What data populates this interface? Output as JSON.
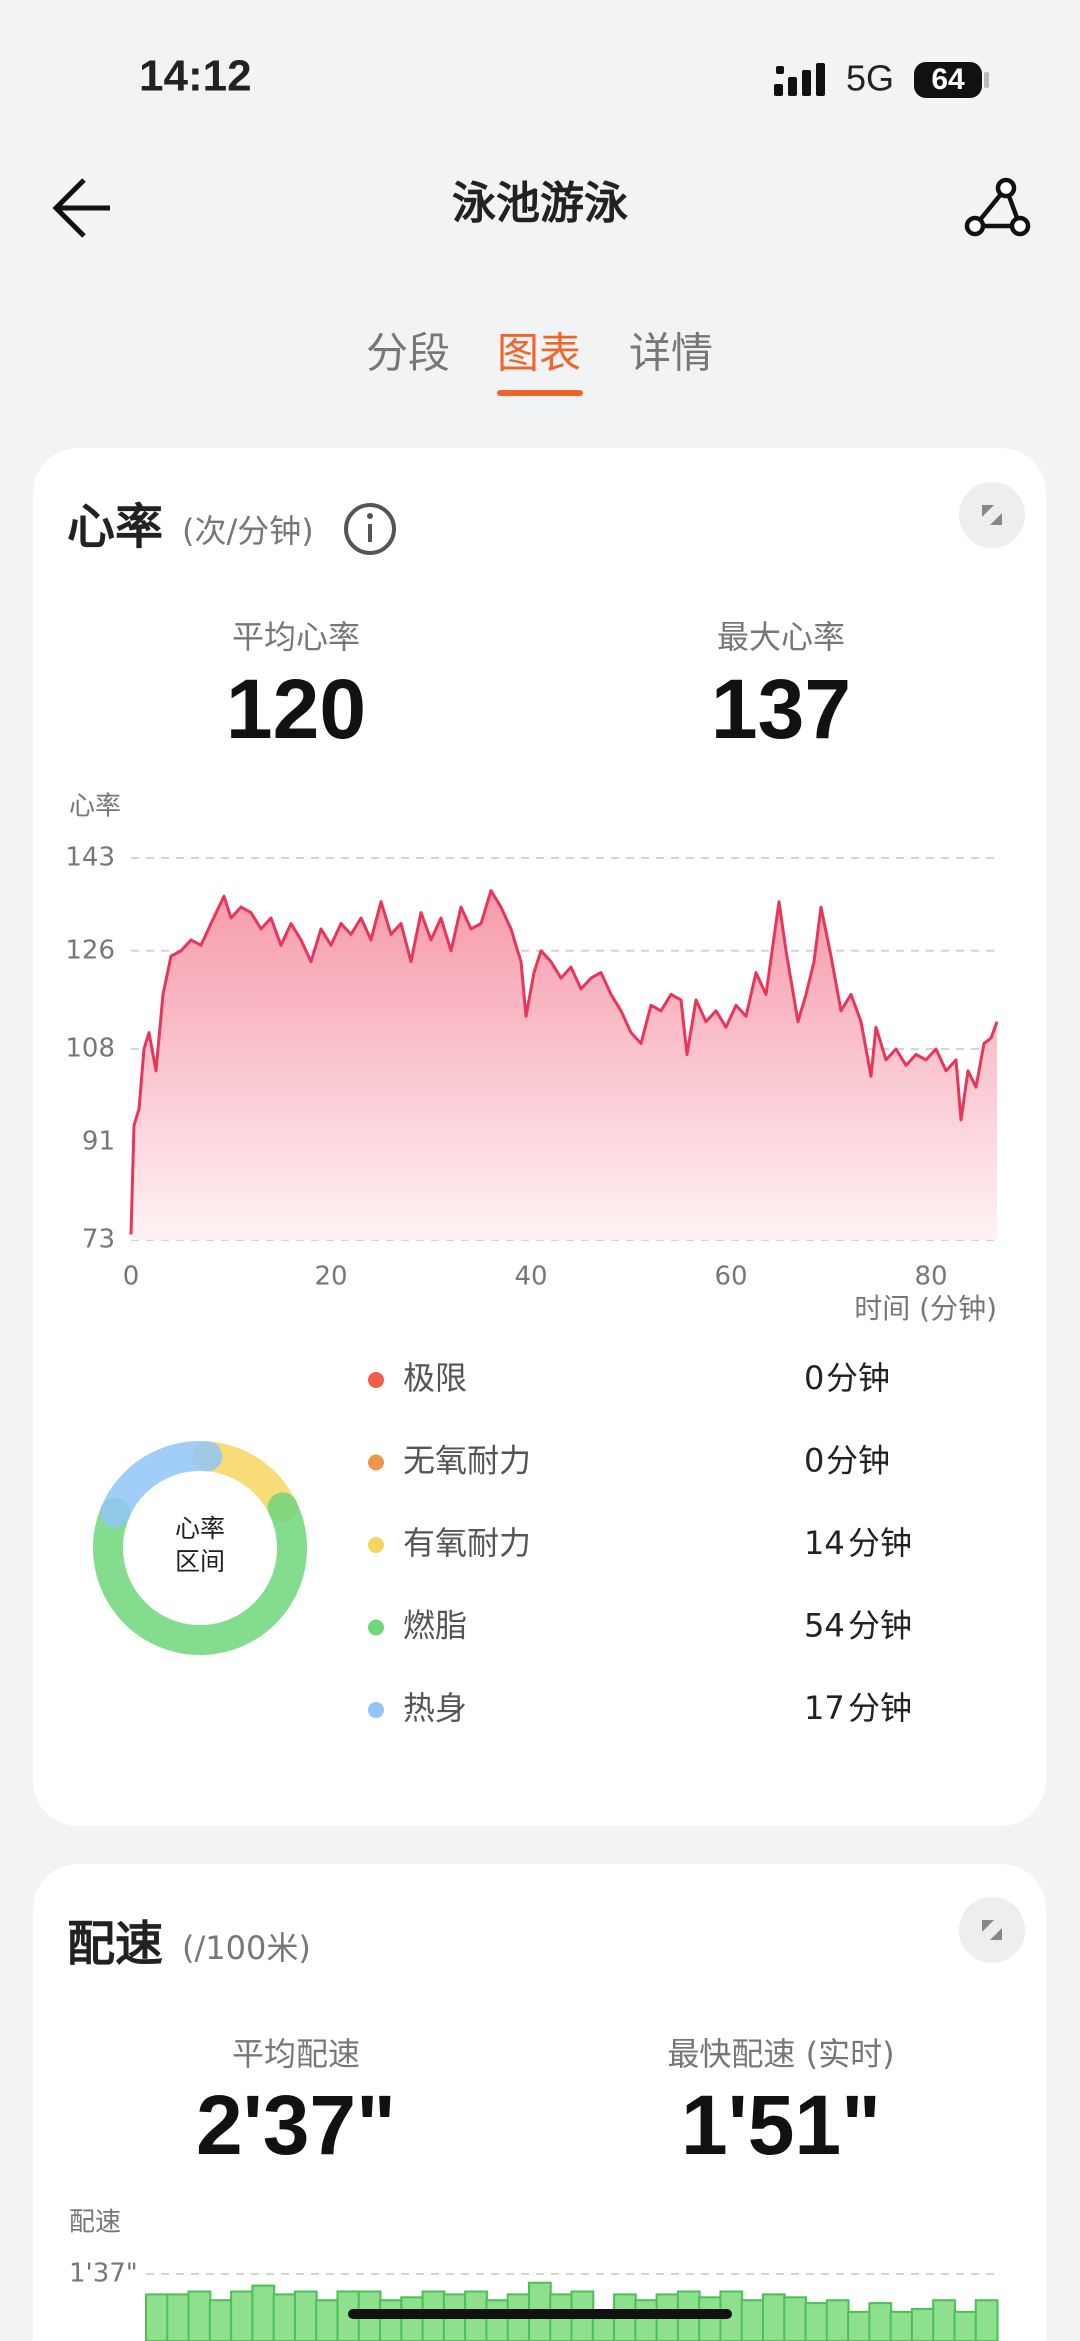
{
  "status_bar": {
    "time": "14:12",
    "network": "5G",
    "battery": "64"
  },
  "header": {
    "title": "泳池游泳"
  },
  "tabs": [
    "分段",
    "图表",
    "详情"
  ],
  "heart_rate": {
    "title": "心率",
    "unit": "(次/分钟)",
    "summary": [
      {
        "label": "平均心率",
        "value": "120"
      },
      {
        "label": "最大心率",
        "value": "137"
      }
    ],
    "chart": {
      "type": "line",
      "y_label": "心率",
      "x_label": "时间 (分钟)",
      "color": "#e8365a",
      "x": [
        0,
        0.3,
        0.8,
        1.3,
        1.8,
        2.5,
        3.2,
        4,
        5,
        6,
        7,
        8,
        9.3,
        10,
        11,
        12,
        13,
        14,
        15,
        16,
        17,
        18,
        19,
        20,
        21,
        22,
        23,
        24,
        25,
        26,
        27,
        28,
        29,
        30,
        31,
        32,
        33,
        34,
        35,
        36,
        37,
        38,
        39,
        39.5,
        40.3,
        41,
        42,
        43,
        44,
        45,
        46,
        47,
        48,
        49,
        50,
        51,
        52,
        53,
        54,
        55,
        55.6,
        56.5,
        57.5,
        58.5,
        59.5,
        60.5,
        61.5,
        62.5,
        63.5,
        64.8,
        65.5,
        66.7,
        67.5,
        68.3,
        69,
        70,
        71,
        72,
        73,
        74,
        74.5,
        75.5,
        76.5,
        77.5,
        78.5,
        79.5,
        80.5,
        81.5,
        82.5,
        83,
        83.7,
        84.5,
        85.3,
        86,
        86.6
      ],
      "values": [
        74,
        94,
        97,
        108,
        111,
        104,
        118,
        125,
        126,
        128,
        127,
        131,
        136,
        132,
        134,
        133,
        130,
        132,
        127,
        131,
        128,
        124,
        130,
        127,
        131,
        129,
        132,
        128,
        135,
        129,
        131,
        124,
        133,
        128,
        132,
        126,
        134,
        130,
        131,
        137,
        134,
        130,
        124,
        114,
        122,
        126,
        124,
        121,
        123,
        119,
        121,
        122,
        118,
        115,
        111,
        109,
        116,
        115,
        118,
        117,
        107,
        117,
        113,
        115,
        112,
        116,
        114,
        122,
        118,
        135,
        126,
        113,
        118,
        124,
        134,
        125,
        115,
        118,
        113,
        103,
        112,
        106,
        108,
        105,
        107,
        106,
        108,
        104,
        106,
        95,
        104,
        101,
        109,
        110,
        113
      ],
      "xlim": [
        0,
        86.6
      ],
      "ylim": [
        73,
        143
      ],
      "xticks": [
        0,
        20,
        40,
        60,
        80
      ],
      "yticks": [
        73,
        91,
        108,
        126,
        143
      ]
    },
    "zone_center": [
      "心率",
      "区间"
    ],
    "minute_unit": "分钟",
    "zones": [
      {
        "name": "极限",
        "color": "#f25c4a",
        "minutes": 0
      },
      {
        "name": "无氧耐力",
        "color": "#f0964a",
        "minutes": 0
      },
      {
        "name": "有氧耐力",
        "color": "#f7d660",
        "minutes": 14
      },
      {
        "name": "燃脂",
        "color": "#6fd67a",
        "minutes": 54
      },
      {
        "name": "热身",
        "color": "#8fc5f7",
        "minutes": 17
      }
    ]
  },
  "pace": {
    "title": "配速",
    "unit": "(/100米)",
    "summary": [
      {
        "label": "平均配速",
        "value": "2'37\""
      },
      {
        "label": "最快配速 (实时)",
        "value": "1'51\""
      }
    ],
    "chart": {
      "type": "bar",
      "y_label": "配速",
      "color": "#8ee08e",
      "ylim": [
        97,
        120
      ],
      "yticks": [
        {
          "value": 97,
          "label": "1'37\""
        }
      ],
      "values": [
        104,
        104,
        103,
        106,
        103,
        101,
        104,
        103,
        106,
        103,
        103,
        106,
        105,
        103,
        104,
        103,
        106,
        104,
        100,
        104,
        103,
        110,
        104,
        106,
        104,
        103,
        105,
        103,
        106,
        104,
        105,
        107,
        106,
        110,
        107,
        110,
        109,
        106,
        110,
        106
      ]
    }
  }
}
